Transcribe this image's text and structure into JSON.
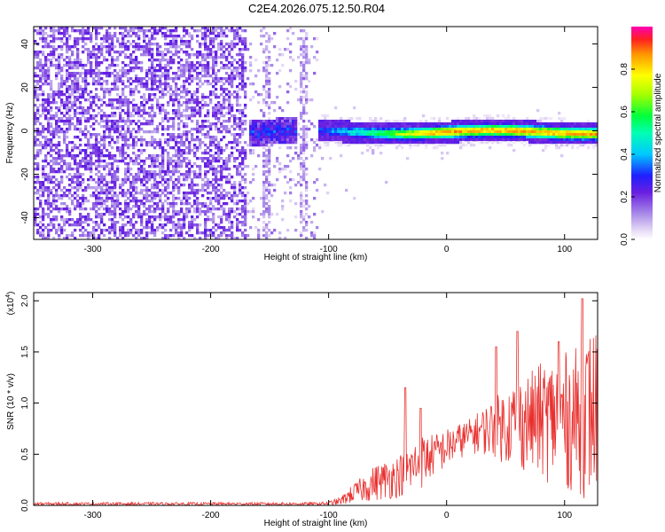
{
  "title": "C2E4.2026.075.12.50.R04",
  "colorbar": {
    "label": "Normalized spectral amplitude",
    "ticks": [
      "0.0",
      "0.2",
      "0.4",
      "0.6",
      "0.8"
    ],
    "tick_values": [
      0.0,
      0.2,
      0.4,
      0.6,
      0.8
    ],
    "range": [
      0,
      1
    ]
  },
  "chart_data": [
    {
      "type": "heatmap",
      "xlabel": "Height of straight line (km)",
      "ylabel": "Frequency (Hz)",
      "xlim": [
        -350,
        128
      ],
      "ylim": [
        -50,
        48
      ],
      "xticks": [
        "-300",
        "-200",
        "-100",
        "0",
        "100"
      ],
      "xtick_values": [
        -300,
        -200,
        -100,
        0,
        100
      ],
      "yticks": [
        "40",
        "20",
        "0",
        "-20",
        "-40"
      ],
      "ytick_values": [
        40,
        20,
        0,
        -20,
        -40
      ],
      "regions": [
        {
          "x_range": [
            -350,
            -170
          ],
          "content": "scattered weak noise, amplitude ~0.1-0.2, all frequencies"
        },
        {
          "x_range": [
            -170,
            -110
          ],
          "content": "sparse noise columns, amplitude ~0.05-0.15, all frequencies"
        },
        {
          "x_range": [
            -165,
            -125
          ],
          "content": "signal band, frequency ~0, amplitude ~0.3"
        },
        {
          "x_range": [
            -110,
            128
          ],
          "content": "signal band centred near 0 Hz, width ~±4 Hz, amplitude rising 0.3-0.9"
        }
      ],
      "signal_peak": {
        "frequency": 0,
        "amplitude": 0.9
      }
    },
    {
      "type": "line",
      "xlabel": "Height of straight line (km)",
      "ylabel": "SNR (10 * v/v)",
      "y_multiplier": "(x10^4)",
      "y_multiplier_base": "(x10",
      "y_multiplier_exp": "4",
      "y_multiplier_close": ")",
      "xlim": [
        -350,
        128
      ],
      "ylim": [
        0,
        2.08
      ],
      "xticks": [
        "-300",
        "-200",
        "-100",
        "0",
        "100"
      ],
      "xtick_values": [
        -300,
        -200,
        -100,
        0,
        100
      ],
      "yticks": [
        "0.0",
        "0.5",
        "1.0",
        "1.5",
        "2.0"
      ],
      "ytick_values": [
        0.0,
        0.5,
        1.0,
        1.5,
        2.0
      ],
      "color": "#e8312f",
      "envelope": {
        "x": [
          -350,
          -200,
          -110,
          -100,
          -90,
          -80,
          -70,
          -60,
          -50,
          -40,
          -30,
          -20,
          -10,
          0,
          10,
          20,
          30,
          40,
          50,
          60,
          70,
          80,
          90,
          100,
          110,
          120,
          128
        ],
        "y_low": [
          0.0,
          0.0,
          0.0,
          0.0,
          0.0,
          0.02,
          0.03,
          0.04,
          0.05,
          0.08,
          0.1,
          0.15,
          0.3,
          0.35,
          0.45,
          0.5,
          0.5,
          0.45,
          0.4,
          0.35,
          0.3,
          0.25,
          0.2,
          0.15,
          0.1,
          0.05,
          0.05
        ],
        "y_high": [
          0.03,
          0.03,
          0.03,
          0.04,
          0.08,
          0.2,
          0.3,
          0.4,
          0.45,
          0.5,
          0.6,
          0.7,
          0.7,
          0.75,
          0.8,
          0.85,
          0.95,
          1.05,
          1.15,
          1.25,
          1.3,
          1.4,
          1.45,
          1.5,
          1.55,
          1.7,
          1.8
        ]
      },
      "annotated_peaks": [
        {
          "x": -35,
          "y": 1.15
        },
        {
          "x": -22,
          "y": 0.95
        },
        {
          "x": 42,
          "y": 1.55
        },
        {
          "x": 60,
          "y": 1.7
        },
        {
          "x": 95,
          "y": 1.6
        },
        {
          "x": 115,
          "y": 2.02
        }
      ]
    }
  ]
}
